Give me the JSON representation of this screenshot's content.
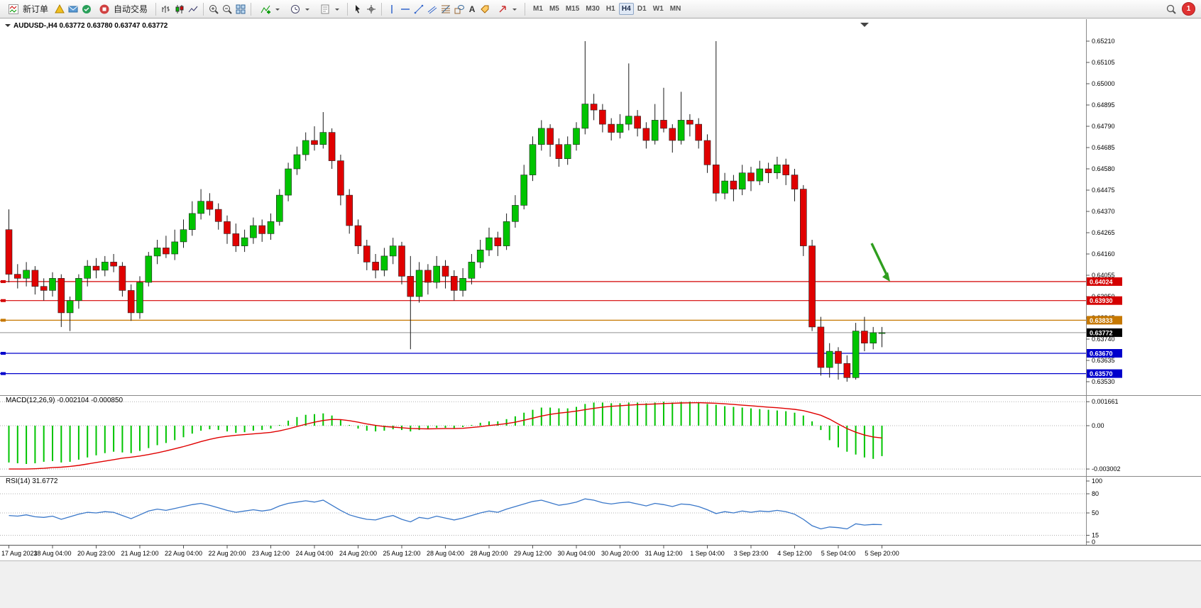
{
  "toolbar": {
    "new_order_label": "新订单",
    "autotrading_label": "自动交易",
    "text_tool_label": "A",
    "timeframes": [
      "M1",
      "M5",
      "M15",
      "M30",
      "H1",
      "H4",
      "D1",
      "W1",
      "MN"
    ],
    "active_timeframe": "H4",
    "notification_count": "1",
    "icons": [
      "new-order-icon",
      "alerts-icon",
      "mailbox-icon",
      "market-watch-icon",
      "autotrading-icon",
      "bar-chart-icon",
      "candlestick-icon",
      "line-chart-icon",
      "zoom-in-icon",
      "zoom-out-icon",
      "tile-windows-icon",
      "indicators-icon",
      "periods-icon",
      "templates-icon",
      "cursor-icon",
      "crosshair-icon",
      "vertical-line-icon",
      "horizontal-line-icon",
      "trendline-icon",
      "channel-icon",
      "fibonacci-icon",
      "shapes-icon",
      "text-icon",
      "label-icon",
      "arrow-tools-icon",
      "search-icon",
      "notification-badge"
    ]
  },
  "chart": {
    "symbol_header": "AUDUSD-,H4  0.63772 0.63780 0.63747 0.63772",
    "macd_header": "MACD(12,26,9) -0.002104 -0.000850",
    "rsi_header": "RSI(14) 31.6772",
    "colors": {
      "bull": "#00C400",
      "bear": "#E00000",
      "wick": "#1a1a1a",
      "macd_hist": "#00C400",
      "macd_signal": "#E00000",
      "rsi_line": "#3977C9",
      "level_red": "#D40000",
      "level_orange": "#C67800",
      "level_blue": "#0000CC",
      "current": "#000000",
      "arrow": "#2F9E1F"
    }
  },
  "chart_data": {
    "type": "candlestick",
    "symbol": "AUDUSD-",
    "period": "H4",
    "price_axis": [
      "0.65210",
      "0.65105",
      "0.65000",
      "0.64895",
      "0.64790",
      "0.64685",
      "0.64580",
      "0.64475",
      "0.64370",
      "0.64265",
      "0.64160",
      "0.64055",
      "0.63950",
      "0.63845",
      "0.63740",
      "0.63635",
      "0.63530"
    ],
    "time_labels": [
      "17 Aug 2023",
      "18 Aug 04:00",
      "20 Aug 23:00",
      "21 Aug 12:00",
      "22 Aug 04:00",
      "22 Aug 20:00",
      "23 Aug 12:00",
      "24 Aug 04:00",
      "24 Aug 20:00",
      "25 Aug 12:00",
      "28 Aug 04:00",
      "28 Aug 20:00",
      "29 Aug 12:00",
      "30 Aug 04:00",
      "30 Aug 20:00",
      "31 Aug 12:00",
      "1 Sep 04:00",
      "3 Sep 23:00",
      "4 Sep 12:00",
      "5 Sep 04:00",
      "5 Sep 20:00"
    ],
    "levels": [
      {
        "label": "0.64024",
        "price": 0.64024,
        "color": "#D40000"
      },
      {
        "label": "0.63930",
        "price": 0.6393,
        "color": "#D40000"
      },
      {
        "label": "0.63833",
        "price": 0.63833,
        "color": "#C67800"
      },
      {
        "label": "0.63670",
        "price": 0.6367,
        "color": "#0000CC"
      },
      {
        "label": "0.63570",
        "price": 0.6357,
        "color": "#0000CC"
      }
    ],
    "current_price": {
      "label": "0.63772",
      "price": 0.63772,
      "color": "#000000"
    },
    "ohlc": [
      [
        0.6428,
        0.6438,
        0.6402,
        0.6406
      ],
      [
        0.6406,
        0.6411,
        0.6399,
        0.6404
      ],
      [
        0.6404,
        0.6412,
        0.64,
        0.6408
      ],
      [
        0.6408,
        0.641,
        0.6396,
        0.64
      ],
      [
        0.64,
        0.6404,
        0.6393,
        0.6398
      ],
      [
        0.6398,
        0.6407,
        0.6395,
        0.6404
      ],
      [
        0.6404,
        0.6406,
        0.638,
        0.6387
      ],
      [
        0.6387,
        0.6395,
        0.6378,
        0.6393
      ],
      [
        0.6393,
        0.6406,
        0.6389,
        0.6404
      ],
      [
        0.6404,
        0.6413,
        0.64,
        0.641
      ],
      [
        0.641,
        0.6414,
        0.6404,
        0.6408
      ],
      [
        0.6408,
        0.6415,
        0.6405,
        0.6412
      ],
      [
        0.6412,
        0.6416,
        0.6407,
        0.641
      ],
      [
        0.641,
        0.6412,
        0.6395,
        0.6398
      ],
      [
        0.6398,
        0.6401,
        0.6383,
        0.6387
      ],
      [
        0.6387,
        0.6405,
        0.6384,
        0.6402
      ],
      [
        0.6402,
        0.6417,
        0.64,
        0.6415
      ],
      [
        0.6415,
        0.6423,
        0.6411,
        0.6419
      ],
      [
        0.6419,
        0.6425,
        0.6414,
        0.6416
      ],
      [
        0.6416,
        0.6428,
        0.6413,
        0.6422
      ],
      [
        0.6422,
        0.6433,
        0.6419,
        0.6428
      ],
      [
        0.6428,
        0.6442,
        0.6425,
        0.6436
      ],
      [
        0.6436,
        0.6448,
        0.6433,
        0.6442
      ],
      [
        0.6442,
        0.6446,
        0.6435,
        0.6438
      ],
      [
        0.6438,
        0.6441,
        0.6428,
        0.6432
      ],
      [
        0.6432,
        0.6435,
        0.6421,
        0.6426
      ],
      [
        0.6426,
        0.6431,
        0.6417,
        0.642
      ],
      [
        0.642,
        0.6428,
        0.6417,
        0.6424
      ],
      [
        0.6424,
        0.6434,
        0.6421,
        0.643
      ],
      [
        0.643,
        0.6433,
        0.6422,
        0.6426
      ],
      [
        0.6426,
        0.6436,
        0.6423,
        0.6432
      ],
      [
        0.6432,
        0.6448,
        0.643,
        0.6445
      ],
      [
        0.6445,
        0.6461,
        0.6442,
        0.6458
      ],
      [
        0.6458,
        0.6469,
        0.6455,
        0.6465
      ],
      [
        0.6465,
        0.6476,
        0.6462,
        0.6472
      ],
      [
        0.6472,
        0.6479,
        0.6467,
        0.647
      ],
      [
        0.647,
        0.6486,
        0.6468,
        0.6476
      ],
      [
        0.6476,
        0.6478,
        0.6458,
        0.6462
      ],
      [
        0.6462,
        0.6465,
        0.644,
        0.6445
      ],
      [
        0.6445,
        0.6448,
        0.6426,
        0.643
      ],
      [
        0.643,
        0.6433,
        0.6416,
        0.642
      ],
      [
        0.642,
        0.6423,
        0.6408,
        0.6412
      ],
      [
        0.6412,
        0.6416,
        0.6404,
        0.6408
      ],
      [
        0.6408,
        0.6419,
        0.6405,
        0.6415
      ],
      [
        0.6415,
        0.6424,
        0.6411,
        0.642
      ],
      [
        0.642,
        0.6422,
        0.6401,
        0.6405
      ],
      [
        0.6405,
        0.6415,
        0.6369,
        0.6395
      ],
      [
        0.6395,
        0.6412,
        0.6392,
        0.6408
      ],
      [
        0.6408,
        0.6411,
        0.6396,
        0.6402
      ],
      [
        0.6402,
        0.6415,
        0.6399,
        0.641
      ],
      [
        0.641,
        0.6413,
        0.6399,
        0.6405
      ],
      [
        0.6405,
        0.6408,
        0.6393,
        0.6398
      ],
      [
        0.6398,
        0.6409,
        0.6395,
        0.6404
      ],
      [
        0.6404,
        0.6416,
        0.6401,
        0.6412
      ],
      [
        0.6412,
        0.6423,
        0.6409,
        0.6418
      ],
      [
        0.6418,
        0.6429,
        0.6415,
        0.6424
      ],
      [
        0.6424,
        0.6427,
        0.6415,
        0.642
      ],
      [
        0.642,
        0.6436,
        0.6418,
        0.6432
      ],
      [
        0.6432,
        0.6445,
        0.6429,
        0.644
      ],
      [
        0.644,
        0.646,
        0.6438,
        0.6455
      ],
      [
        0.6455,
        0.6474,
        0.6452,
        0.647
      ],
      [
        0.647,
        0.6482,
        0.6467,
        0.6478
      ],
      [
        0.6478,
        0.648,
        0.6464,
        0.647
      ],
      [
        0.647,
        0.6473,
        0.6459,
        0.6463
      ],
      [
        0.6463,
        0.6474,
        0.646,
        0.647
      ],
      [
        0.647,
        0.6481,
        0.6467,
        0.6478
      ],
      [
        0.6478,
        0.6521,
        0.6475,
        0.649
      ],
      [
        0.649,
        0.6495,
        0.6482,
        0.6487
      ],
      [
        0.6487,
        0.649,
        0.6476,
        0.648
      ],
      [
        0.648,
        0.6483,
        0.6472,
        0.6476
      ],
      [
        0.6476,
        0.6485,
        0.6473,
        0.648
      ],
      [
        0.648,
        0.651,
        0.6477,
        0.6484
      ],
      [
        0.6484,
        0.6487,
        0.6474,
        0.6478
      ],
      [
        0.6478,
        0.6481,
        0.6468,
        0.6472
      ],
      [
        0.6472,
        0.649,
        0.647,
        0.6482
      ],
      [
        0.6482,
        0.6498,
        0.6476,
        0.6478
      ],
      [
        0.6478,
        0.648,
        0.6466,
        0.6472
      ],
      [
        0.6472,
        0.6496,
        0.647,
        0.6482
      ],
      [
        0.6482,
        0.6485,
        0.6474,
        0.648
      ],
      [
        0.648,
        0.6483,
        0.6468,
        0.6472
      ],
      [
        0.6472,
        0.6475,
        0.6456,
        0.646
      ],
      [
        0.646,
        0.6521,
        0.6442,
        0.6446
      ],
      [
        0.6446,
        0.6456,
        0.6443,
        0.6452
      ],
      [
        0.6452,
        0.6455,
        0.6442,
        0.6448
      ],
      [
        0.6448,
        0.646,
        0.6445,
        0.6456
      ],
      [
        0.6456,
        0.6459,
        0.6447,
        0.6452
      ],
      [
        0.6452,
        0.6462,
        0.645,
        0.6458
      ],
      [
        0.6458,
        0.6461,
        0.6451,
        0.6456
      ],
      [
        0.6456,
        0.6464,
        0.6453,
        0.646
      ],
      [
        0.646,
        0.6463,
        0.645,
        0.6455
      ],
      [
        0.6455,
        0.6458,
        0.6442,
        0.6448
      ],
      [
        0.6448,
        0.645,
        0.6415,
        0.642
      ],
      [
        0.642,
        0.6423,
        0.6378,
        0.638
      ],
      [
        0.638,
        0.6385,
        0.6356,
        0.636
      ],
      [
        0.636,
        0.6372,
        0.6355,
        0.6368
      ],
      [
        0.6368,
        0.637,
        0.6354,
        0.6362
      ],
      [
        0.6362,
        0.6366,
        0.6353,
        0.6355
      ],
      [
        0.6355,
        0.6382,
        0.6354,
        0.6378
      ],
      [
        0.6378,
        0.6385,
        0.6368,
        0.6372
      ],
      [
        0.6372,
        0.638,
        0.6369,
        0.63772
      ],
      [
        0.63772,
        0.638,
        0.637,
        0.63772
      ]
    ],
    "macd": {
      "scale": 0.001,
      "axis_labels": [
        "0.001661",
        "0.00",
        "-0.003002"
      ],
      "axis_values": [
        0.001661,
        0,
        -0.003002
      ],
      "hist": [
        -2.55,
        -2.6,
        -2.65,
        -2.6,
        -2.5,
        -2.45,
        -2.55,
        -2.5,
        -2.35,
        -2.2,
        -2.05,
        -1.9,
        -1.8,
        -1.85,
        -1.9,
        -1.75,
        -1.55,
        -1.35,
        -1.2,
        -1.0,
        -0.8,
        -0.55,
        -0.35,
        -0.25,
        -0.3,
        -0.4,
        -0.5,
        -0.45,
        -0.35,
        -0.3,
        -0.2,
        0.05,
        0.35,
        0.6,
        0.75,
        0.8,
        0.85,
        0.7,
        0.4,
        0.05,
        -0.2,
        -0.35,
        -0.4,
        -0.35,
        -0.25,
        -0.3,
        -0.4,
        -0.3,
        -0.25,
        -0.15,
        -0.15,
        -0.2,
        -0.1,
        0.05,
        0.2,
        0.3,
        0.3,
        0.45,
        0.65,
        0.9,
        1.1,
        1.25,
        1.25,
        1.2,
        1.2,
        1.3,
        1.5,
        1.6,
        1.6,
        1.55,
        1.55,
        1.6,
        1.6,
        1.55,
        1.6,
        1.65,
        1.6,
        1.65,
        1.66,
        1.6,
        1.5,
        1.45,
        1.35,
        1.3,
        1.25,
        1.2,
        1.15,
        1.1,
        1.05,
        1.0,
        0.9,
        0.7,
        0.3,
        -0.3,
        -1.0,
        -1.5,
        -1.8,
        -2.0,
        -2.2,
        -2.3,
        -2.104
      ],
      "signal": [
        -3.0,
        -3.0,
        -3.0,
        -2.98,
        -2.95,
        -2.9,
        -2.87,
        -2.82,
        -2.75,
        -2.65,
        -2.55,
        -2.45,
        -2.35,
        -2.25,
        -2.18,
        -2.1,
        -2.0,
        -1.88,
        -1.75,
        -1.6,
        -1.45,
        -1.28,
        -1.1,
        -0.95,
        -0.82,
        -0.73,
        -0.67,
        -0.62,
        -0.57,
        -0.52,
        -0.46,
        -0.36,
        -0.22,
        -0.06,
        0.1,
        0.24,
        0.36,
        0.43,
        0.42,
        0.35,
        0.24,
        0.12,
        0.02,
        -0.06,
        -0.1,
        -0.14,
        -0.19,
        -0.21,
        -0.22,
        -0.21,
        -0.2,
        -0.2,
        -0.18,
        -0.13,
        -0.07,
        0.01,
        0.07,
        0.14,
        0.24,
        0.38,
        0.52,
        0.67,
        0.78,
        0.87,
        0.93,
        1.01,
        1.11,
        1.2,
        1.28,
        1.34,
        1.38,
        1.42,
        1.46,
        1.48,
        1.5,
        1.53,
        1.55,
        1.57,
        1.58,
        1.59,
        1.57,
        1.55,
        1.51,
        1.47,
        1.42,
        1.38,
        1.33,
        1.28,
        1.24,
        1.19,
        1.13,
        1.04,
        0.89,
        0.72,
        0.45,
        0.12,
        -0.2,
        -0.45,
        -0.65,
        -0.78,
        -0.85
      ]
    },
    "rsi": {
      "axis_labels": [
        "100",
        "80",
        "50",
        "15",
        "0"
      ],
      "axis_values": [
        100,
        80,
        50,
        15,
        0
      ],
      "levels": [
        80,
        50,
        15
      ],
      "current": 31.6772,
      "values": [
        46,
        45,
        47,
        44,
        43,
        45,
        40,
        44,
        48,
        51,
        50,
        52,
        51,
        46,
        41,
        47,
        53,
        56,
        54,
        57,
        60,
        63,
        65,
        62,
        58,
        54,
        51,
        53,
        55,
        53,
        55,
        61,
        65,
        67,
        69,
        67,
        70,
        62,
        54,
        47,
        43,
        40,
        39,
        43,
        46,
        40,
        36,
        43,
        41,
        45,
        42,
        39,
        42,
        46,
        50,
        53,
        51,
        56,
        60,
        64,
        68,
        70,
        66,
        62,
        64,
        67,
        72,
        70,
        66,
        64,
        66,
        67,
        64,
        61,
        65,
        63,
        60,
        64,
        63,
        60,
        55,
        49,
        52,
        50,
        53,
        51,
        53,
        52,
        54,
        52,
        48,
        40,
        30,
        25,
        28,
        27,
        25,
        33,
        31,
        32,
        31.6772
      ]
    }
  }
}
